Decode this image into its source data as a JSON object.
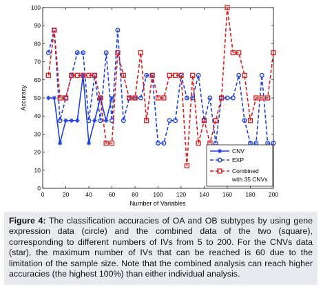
{
  "chart_data": {
    "type": "line",
    "xlabel": "Number of Variables",
    "ylabel": "Accuracy",
    "xlim": [
      0,
      200
    ],
    "ylim": [
      0,
      100
    ],
    "xticks": [
      "0",
      "20",
      "40",
      "60",
      "80",
      "100",
      "120",
      "140",
      "160",
      "180",
      "200"
    ],
    "yticks": [
      "0",
      "10",
      "20",
      "30",
      "40",
      "50",
      "60",
      "70",
      "80",
      "90",
      "100"
    ],
    "grid": false,
    "legend_position": "bottom-right",
    "series": [
      {
        "name": "CNV",
        "marker": "star",
        "color": "#1f3fe0",
        "dash": "solid",
        "x": [
          5,
          10,
          15,
          20,
          25,
          30,
          35,
          40,
          45,
          50,
          55,
          60
        ],
        "y": [
          50,
          50,
          25,
          37.5,
          37.5,
          37.5,
          62.5,
          25,
          37.5,
          50,
          37.5,
          50
        ]
      },
      {
        "name": "EXP",
        "marker": "circle",
        "color": "#1f3fe0",
        "dash": "dashed",
        "x": [
          5,
          10,
          15,
          20,
          25,
          30,
          35,
          40,
          45,
          50,
          55,
          60,
          65,
          70,
          75,
          80,
          85,
          90,
          95,
          100,
          105,
          110,
          115,
          120,
          125,
          130,
          135,
          140,
          145,
          150,
          155,
          160,
          165,
          170,
          175,
          180,
          185,
          190,
          195,
          200
        ],
        "y": [
          75,
          87.5,
          37.5,
          50,
          62.5,
          75,
          75,
          37.5,
          62.5,
          37.5,
          75,
          37.5,
          87.5,
          37.5,
          50,
          50,
          50,
          62.5,
          62.5,
          25,
          25,
          37.5,
          37.5,
          62.5,
          50,
          50,
          62.5,
          37.5,
          50,
          25,
          50,
          50,
          50,
          62.5,
          37.5,
          25,
          25,
          62.5,
          25,
          25
        ]
      },
      {
        "name": "Combined with 35 CNVs",
        "marker": "square",
        "color": "#e01818",
        "dash": "dashed",
        "x": [
          5,
          10,
          15,
          20,
          25,
          30,
          35,
          40,
          45,
          50,
          55,
          60,
          65,
          70,
          75,
          80,
          85,
          90,
          95,
          100,
          105,
          110,
          115,
          120,
          125,
          130,
          135,
          140,
          145,
          150,
          155,
          160,
          165,
          170,
          175,
          180,
          185,
          190,
          195,
          200
        ],
        "y": [
          62.5,
          87.5,
          50,
          50,
          62.5,
          62.5,
          62.5,
          62.5,
          62.5,
          50,
          25,
          25,
          75,
          62.5,
          50,
          50,
          75,
          37.5,
          62.5,
          50,
          50,
          62.5,
          62.5,
          62.5,
          12.5,
          62.5,
          25,
          37.5,
          25,
          37.5,
          50,
          100,
          75,
          75,
          62.5,
          37.5,
          50,
          50,
          50,
          75
        ]
      }
    ]
  },
  "caption": {
    "label": "Figure 4:",
    "text": "The classification accuracies of OA and OB subtypes by using gene expression data (circle) and the combined data of the two (square), corresponding to different numbers of IVs from 5 to 200. For the CNVs data (star), the maximum number of IVs that can be reached is 60 due to the limitation of the sample size. Note that the combined analysis can reach higher accuracies (the highest 100%) than either individual analysis."
  },
  "legend": {
    "entries": [
      "CNV",
      "EXP",
      "Combined",
      "with 35 CNVs"
    ]
  }
}
